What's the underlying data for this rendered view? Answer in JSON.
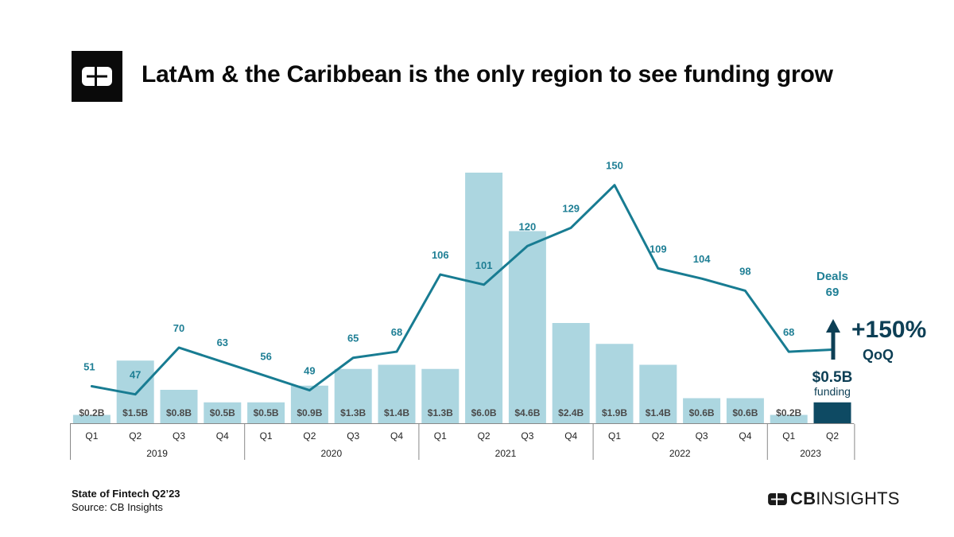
{
  "header": {
    "title": "LatAm & the Caribbean is the only region to see funding grow"
  },
  "footer": {
    "report": "State of Fintech Q2’23",
    "source": "Source: CB Insights"
  },
  "brand": {
    "bold": "CB",
    "light": "INSIGHTS"
  },
  "colors": {
    "bar": "#acd6e0",
    "bar_highlight": "#0e4a63",
    "line": "#187c92",
    "bar_label": "#4a4a4a",
    "deal_label": "#1f7f95",
    "callout": "#0d3f55",
    "axis": "#888888"
  },
  "chart_data": {
    "type": "bar+line",
    "title": "LatAm & the Caribbean is the only region to see funding grow",
    "categories": [
      "Q1",
      "Q2",
      "Q3",
      "Q4",
      "Q1",
      "Q2",
      "Q3",
      "Q4",
      "Q1",
      "Q2",
      "Q3",
      "Q4",
      "Q1",
      "Q2",
      "Q3",
      "Q4",
      "Q1",
      "Q2"
    ],
    "years": [
      {
        "label": "2019",
        "count": 4
      },
      {
        "label": "2020",
        "count": 4
      },
      {
        "label": "2021",
        "count": 4
      },
      {
        "label": "2022",
        "count": 4
      },
      {
        "label": "2023",
        "count": 2
      }
    ],
    "series": [
      {
        "name": "Funding ($B)",
        "type": "bar",
        "values": [
          0.2,
          1.5,
          0.8,
          0.5,
          0.5,
          0.9,
          1.3,
          1.4,
          1.3,
          6.0,
          4.6,
          2.4,
          1.9,
          1.4,
          0.6,
          0.6,
          0.2,
          0.5
        ],
        "labels": [
          "$0.2B",
          "$1.5B",
          "$0.8B",
          "$0.5B",
          "$0.5B",
          "$0.9B",
          "$1.3B",
          "$1.4B",
          "$1.3B",
          "$6.0B",
          "$4.6B",
          "$2.4B",
          "$1.9B",
          "$1.4B",
          "$0.6B",
          "$0.6B",
          "$0.2B",
          "$0.5B"
        ]
      },
      {
        "name": "Deals",
        "type": "line",
        "values": [
          51,
          47,
          70,
          63,
          56,
          49,
          65,
          68,
          106,
          101,
          120,
          129,
          150,
          109,
          104,
          98,
          68,
          69
        ]
      }
    ],
    "annotations": {
      "deals_label": "Deals",
      "growth": "+150%",
      "growth_sub": "QoQ",
      "funding_value": "$0.5B",
      "funding_label": "funding"
    }
  }
}
